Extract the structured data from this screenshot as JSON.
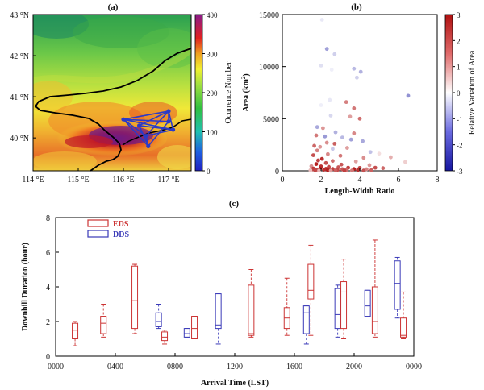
{
  "chart_data": [
    {
      "panel": "(a)",
      "type": "heatmap",
      "x_ticks": [
        "114 °E",
        "115 °E",
        "116 °E",
        "117 °E"
      ],
      "y_ticks": [
        "43 °N",
        "42 °N",
        "41 °N",
        "40 °N"
      ],
      "xlim": [
        114,
        117.5
      ],
      "ylim": [
        39.2,
        43
      ],
      "colorbar": {
        "label": "Ocurrence Number",
        "ticks": [
          0,
          100,
          200,
          300,
          400
        ],
        "range": [
          0,
          400
        ]
      },
      "network_nodes": [
        [
          116.0,
          40.45
        ],
        [
          116.5,
          40.05
        ],
        [
          117.0,
          40.65
        ],
        [
          117.0,
          40.4
        ],
        [
          117.1,
          40.2
        ],
        [
          116.55,
          39.8
        ],
        [
          116.35,
          40.3
        ]
      ]
    },
    {
      "panel": "(b)",
      "type": "scatter",
      "xlabel": "Length-Width Ratio",
      "ylabel": "Area (km",
      "ylabel_sup": "2",
      "ylabel_end": ")",
      "x_ticks": [
        "0",
        "2",
        "4",
        "6",
        "8"
      ],
      "y_ticks": [
        "0",
        "5000",
        "10000",
        "15000"
      ],
      "xlim": [
        0,
        8
      ],
      "ylim": [
        0,
        15000
      ],
      "colorbar": {
        "label": "Relative Variation of Area",
        "ticks": [
          "3",
          "2",
          "1",
          "0",
          "-1",
          "-2",
          "-3"
        ],
        "range": [
          -3,
          3
        ]
      },
      "points": [
        [
          2.05,
          14500,
          -0.3
        ],
        [
          2.3,
          11700,
          -1.2
        ],
        [
          2.7,
          11200,
          -0.6
        ],
        [
          2.0,
          10100,
          -0.4
        ],
        [
          2.55,
          9700,
          -0.2
        ],
        [
          3.7,
          9800,
          -0.9
        ],
        [
          4.05,
          9500,
          -1.0
        ],
        [
          3.85,
          8950,
          -0.6
        ],
        [
          6.5,
          7200,
          -1.4
        ],
        [
          2.45,
          6800,
          -0.3
        ],
        [
          3.3,
          6600,
          1.6
        ],
        [
          2.0,
          6300,
          -0.2
        ],
        [
          3.7,
          6000,
          1.7
        ],
        [
          2.5,
          5300,
          -0.5
        ],
        [
          3.5,
          5200,
          1.2
        ],
        [
          4.0,
          5000,
          1.8
        ],
        [
          1.8,
          4200,
          -1.1
        ],
        [
          2.1,
          4100,
          1.3
        ],
        [
          2.75,
          3700,
          -1.0
        ],
        [
          3.7,
          3600,
          1.5
        ],
        [
          1.75,
          3400,
          1.7
        ],
        [
          2.2,
          3300,
          -1.3
        ],
        [
          3.1,
          3200,
          -0.9
        ],
        [
          3.55,
          3000,
          -1.2
        ],
        [
          4.15,
          2850,
          -1.1
        ],
        [
          2.3,
          2700,
          1.4
        ],
        [
          2.7,
          2600,
          2.0
        ],
        [
          1.65,
          2400,
          1.9
        ],
        [
          1.95,
          2300,
          1.3
        ],
        [
          3.35,
          2200,
          1.2
        ],
        [
          2.6,
          2100,
          -0.7
        ],
        [
          1.8,
          1950,
          1.6
        ],
        [
          4.55,
          1800,
          -0.8
        ],
        [
          5.0,
          1650,
          0.4
        ],
        [
          2.35,
          1600,
          1.5
        ],
        [
          1.6,
          1500,
          2.2
        ],
        [
          3.0,
          1450,
          1.7
        ],
        [
          5.6,
          1300,
          1.0
        ],
        [
          4.2,
          1250,
          1.4
        ],
        [
          2.05,
          1150,
          2.6
        ],
        [
          1.85,
          1000,
          2.4
        ],
        [
          2.6,
          950,
          1.8
        ],
        [
          3.8,
          900,
          1.2
        ],
        [
          6.35,
          850,
          0.6
        ],
        [
          2.25,
          750,
          2.2
        ],
        [
          1.75,
          650,
          2.8
        ],
        [
          3.05,
          600,
          2.1
        ],
        [
          4.5,
          550,
          1.3
        ],
        [
          1.5,
          450,
          1.4
        ],
        [
          2.0,
          420,
          2.6
        ],
        [
          2.4,
          380,
          2.3
        ],
        [
          2.9,
          350,
          2.1
        ],
        [
          3.4,
          300,
          2.4
        ],
        [
          4.0,
          280,
          2.3
        ],
        [
          4.8,
          300,
          2.2
        ],
        [
          5.2,
          260,
          1.9
        ],
        [
          1.6,
          220,
          2.5
        ],
        [
          1.95,
          200,
          2.9
        ],
        [
          2.25,
          190,
          2.7
        ],
        [
          2.6,
          180,
          2.4
        ],
        [
          3.1,
          160,
          2.1
        ],
        [
          3.7,
          170,
          2.8
        ],
        [
          4.35,
          150,
          1.6
        ],
        [
          1.55,
          140,
          2.4
        ],
        [
          1.8,
          120,
          2.2
        ],
        [
          2.15,
          110,
          2.6
        ],
        [
          2.45,
          100,
          2.5
        ],
        [
          2.85,
          90,
          2.3
        ],
        [
          3.3,
          85,
          1.9
        ],
        [
          3.9,
          80,
          2.6
        ],
        [
          4.6,
          70,
          2.0
        ],
        [
          1.45,
          60,
          0.8
        ],
        [
          1.7,
          50,
          2.3
        ],
        [
          2.35,
          45,
          2.8
        ],
        [
          2.75,
          40,
          2.0
        ],
        [
          3.2,
          35,
          2.4
        ],
        [
          3.6,
          30,
          1.7
        ],
        [
          4.2,
          25,
          2.2
        ],
        [
          1.9,
          20,
          0.9
        ],
        [
          2.5,
          15,
          1.2
        ]
      ]
    },
    {
      "panel": "(c)",
      "type": "box",
      "xlabel": "Arrival Time (LST)",
      "ylabel": "Downhill Duration (hour)",
      "x_ticks": [
        "0000",
        "0400",
        "0800",
        "1200",
        "1600",
        "2000",
        "0000"
      ],
      "y_ticks": [
        "0",
        "2",
        "4",
        "6",
        "8"
      ],
      "xlim": [
        0,
        24
      ],
      "ylim": [
        0,
        8
      ],
      "legend": [
        "EDS",
        "DDS"
      ],
      "colors": {
        "EDS": "#cc3333",
        "DDS": "#3a3ab8"
      },
      "boxes": [
        {
          "series": "EDS",
          "t": 1.3,
          "min": 0.6,
          "q1": 1.0,
          "med": 1.5,
          "q3": 1.9,
          "max": 2.0
        },
        {
          "series": "EDS",
          "t": 3.2,
          "min": 1.1,
          "q1": 1.3,
          "med": 1.9,
          "q3": 2.3,
          "max": 3.0
        },
        {
          "series": "EDS",
          "t": 5.3,
          "min": 1.3,
          "q1": 1.6,
          "med": 3.2,
          "q3": 5.2,
          "max": 5.3
        },
        {
          "series": "DDS",
          "t": 6.9,
          "min": 1.6,
          "q1": 1.7,
          "med": 2.0,
          "q3": 2.5,
          "max": 3.0
        },
        {
          "series": "EDS",
          "t": 7.3,
          "min": 0.7,
          "q1": 0.9,
          "med": 1.1,
          "q3": 1.4,
          "max": 1.5
        },
        {
          "series": "DDS",
          "t": 8.8,
          "min": 1.1,
          "q1": 1.1,
          "med": 1.3,
          "q3": 1.6,
          "max": 1.6
        },
        {
          "series": "EDS",
          "t": 9.3,
          "min": 1.0,
          "q1": 1.0,
          "med": 1.6,
          "q3": 2.3,
          "max": 2.3
        },
        {
          "series": "DDS",
          "t": 10.9,
          "min": 0.7,
          "q1": 1.6,
          "med": 1.8,
          "q3": 3.6,
          "max": 3.6
        },
        {
          "series": "EDS",
          "t": 13.1,
          "min": 1.1,
          "q1": 1.2,
          "med": 1.3,
          "q3": 4.1,
          "max": 5.0
        },
        {
          "series": "EDS",
          "t": 15.5,
          "min": 1.2,
          "q1": 1.6,
          "med": 2.2,
          "q3": 2.8,
          "max": 4.5
        },
        {
          "series": "EDS",
          "t": 17.1,
          "min": 1.2,
          "q1": 3.3,
          "med": 3.8,
          "q3": 5.3,
          "max": 6.4
        },
        {
          "series": "DDS",
          "t": 16.8,
          "min": 0.7,
          "q1": 1.3,
          "med": 2.5,
          "q3": 2.9,
          "max": 2.9
        },
        {
          "series": "DDS",
          "t": 18.9,
          "min": 1.1,
          "q1": 1.6,
          "med": 2.4,
          "q3": 3.9,
          "max": 4.1
        },
        {
          "series": "EDS",
          "t": 19.3,
          "min": 1.0,
          "q1": 1.6,
          "med": 3.7,
          "q3": 4.3,
          "max": 5.6
        },
        {
          "series": "EDS",
          "t": 21.4,
          "min": 1.1,
          "q1": 1.3,
          "med": 2.0,
          "q3": 4.0,
          "max": 6.7
        },
        {
          "series": "DDS",
          "t": 20.9,
          "min": 2.3,
          "q1": 2.3,
          "med": 2.9,
          "q3": 3.8,
          "max": 3.8
        },
        {
          "series": "DDS",
          "t": 22.9,
          "min": 2.2,
          "q1": 2.7,
          "med": 4.2,
          "q3": 5.5,
          "max": 5.7
        },
        {
          "series": "EDS",
          "t": 23.3,
          "min": 1.0,
          "q1": 1.1,
          "med": 1.2,
          "q3": 2.2,
          "max": 3.7
        }
      ]
    }
  ]
}
